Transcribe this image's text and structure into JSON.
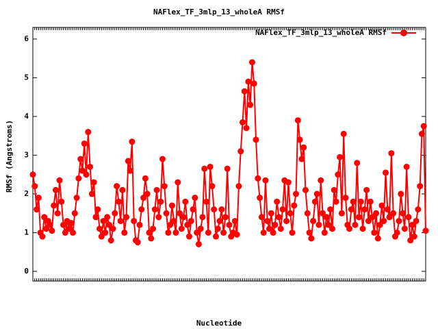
{
  "chart_data": {
    "type": "line",
    "title": "NAFlex_TF_3mlp_13_wholeA RMSf",
    "x_label": "Nucleotide",
    "y_label": "RMSf (Angstroms)",
    "legend_position": "top-right",
    "series": [
      {
        "name": "NAFlex_TF_3mlp_13_wholeA RMSf",
        "color": "#ff0000",
        "values": [
          2.5,
          2.2,
          1.6,
          1.9,
          1.0,
          0.9,
          1.4,
          1.1,
          1.3,
          1.2,
          1.05,
          1.7,
          2.1,
          1.5,
          2.35,
          1.8,
          1.2,
          1.0,
          1.3,
          1.1,
          1.25,
          1.0,
          1.5,
          1.9,
          2.4,
          2.9,
          2.6,
          3.3,
          2.5,
          3.6,
          2.7,
          2.0,
          2.3,
          1.4,
          1.6,
          1.1,
          0.9,
          1.3,
          1.0,
          1.4,
          1.2,
          0.8,
          1.1,
          1.5,
          2.2,
          1.8,
          1.3,
          2.1,
          1.0,
          1.4,
          2.85,
          2.6,
          3.35,
          1.3,
          0.8,
          0.75,
          1.2,
          1.6,
          1.9,
          2.4,
          2.0,
          1.0,
          0.85,
          1.1,
          1.6,
          2.1,
          1.4,
          1.8,
          2.9,
          2.2,
          1.5,
          1.0,
          1.2,
          1.7,
          1.3,
          1.0,
          2.3,
          1.5,
          1.1,
          1.4,
          1.8,
          1.2,
          0.9,
          1.3,
          1.6,
          1.9,
          1.0,
          0.7,
          1.1,
          1.4,
          2.65,
          1.8,
          1.0,
          2.7,
          2.2,
          1.6,
          0.9,
          1.1,
          1.3,
          1.6,
          1.0,
          1.4,
          2.65,
          1.2,
          0.9,
          1.0,
          1.3,
          0.95,
          2.2,
          3.1,
          3.85,
          4.65,
          3.7,
          4.9,
          4.3,
          5.4,
          4.85,
          3.4,
          2.4,
          1.9,
          1.4,
          1.0,
          2.35,
          1.3,
          1.1,
          1.5,
          1.0,
          1.2,
          1.8,
          1.4,
          1.1,
          1.6,
          2.35,
          1.3,
          2.3,
          1.5,
          1.0,
          1.7,
          2.0,
          3.9,
          3.4,
          2.9,
          3.2,
          2.1,
          1.5,
          1.0,
          0.85,
          1.3,
          1.8,
          2.0,
          1.2,
          2.35,
          1.5,
          1.0,
          1.4,
          1.2,
          1.6,
          1.1,
          2.1,
          1.8,
          2.5,
          2.95,
          1.5,
          3.55,
          1.9,
          1.2,
          1.1,
          1.6,
          1.8,
          1.2,
          2.8,
          1.4,
          1.8,
          1.1,
          1.6,
          2.1,
          1.3,
          1.8,
          1.4,
          1.0,
          1.5,
          0.85,
          1.2,
          1.7,
          1.3,
          2.55,
          1.6,
          1.4,
          3.05,
          1.5,
          0.9,
          1.0,
          1.3,
          2.0,
          1.5,
          1.1,
          2.7,
          1.4,
          0.8,
          1.2,
          0.9,
          1.3,
          1.6,
          2.2,
          3.55,
          3.75,
          1.05
        ]
      }
    ],
    "ylim": [
      -0.25,
      6.3
    ],
    "yticks": [
      0,
      1,
      2,
      3,
      4,
      5,
      6
    ]
  }
}
